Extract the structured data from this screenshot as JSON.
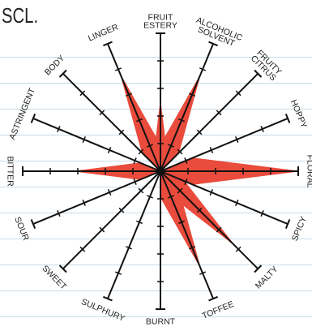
{
  "header": {
    "partial_text": "SCL."
  },
  "chart_data": {
    "type": "radar",
    "max_value": 4,
    "colors": {
      "fill": "#e94b3c",
      "axis": "#111111",
      "rules": "#c9dbe6"
    },
    "axes": [
      {
        "label": [
          "FRUIT",
          "ESTERY"
        ],
        "value": 2
      },
      {
        "label": [
          "ALCOHOLIC",
          "SOLVENT"
        ],
        "value": 3
      },
      {
        "label": [
          "FRUITY",
          "CITRUS"
        ],
        "value": 0
      },
      {
        "label": [
          "HOPPY"
        ],
        "value": 0
      },
      {
        "label": [
          "FLORAL"
        ],
        "value": 4
      },
      {
        "label": [
          "SPICY"
        ],
        "value": 0
      },
      {
        "label": [
          "MALTY"
        ],
        "value": 3
      },
      {
        "label": [
          "TOFFEE"
        ],
        "value": 3
      },
      {
        "label": [
          "BURNT"
        ],
        "value": 0
      },
      {
        "label": [
          "SULPHURY"
        ],
        "value": 0
      },
      {
        "label": [
          "SWEET"
        ],
        "value": 0
      },
      {
        "label": [
          "SOUR"
        ],
        "value": 0
      },
      {
        "label": [
          "BITTER"
        ],
        "value": 2.5
      },
      {
        "label": [
          "ASTRINGENT"
        ],
        "value": 0
      },
      {
        "label": [
          "BODY"
        ],
        "value": 0
      },
      {
        "label": [
          "LINGER"
        ],
        "value": 3
      }
    ]
  }
}
